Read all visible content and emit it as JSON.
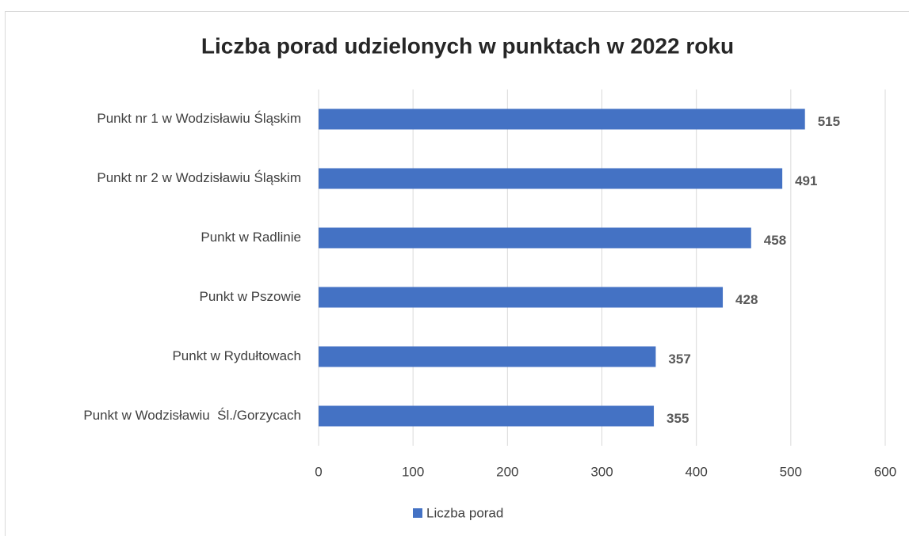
{
  "chart_data": {
    "type": "hbar",
    "title": "Liczba porad udzielonych w punktach w 2022 roku",
    "categories": [
      "Punkt nr 1 w Wodzisławiu Śląskim",
      "Punkt nr 2 w Wodzisławiu Śląskim",
      "Punkt w Radlinie",
      "Punkt w Pszowie",
      "Punkt w Rydułtowach",
      "Punkt w Wodzisławiu  Śl./Gorzycach"
    ],
    "series": [
      {
        "name": "Liczba porad",
        "color": "#4472c4",
        "values": [
          515,
          491,
          458,
          428,
          357,
          355
        ]
      }
    ],
    "xlim": [
      0,
      600
    ],
    "xticks": [
      0,
      100,
      200,
      300,
      400,
      500,
      600
    ],
    "grid": true,
    "legend": "bottom"
  }
}
